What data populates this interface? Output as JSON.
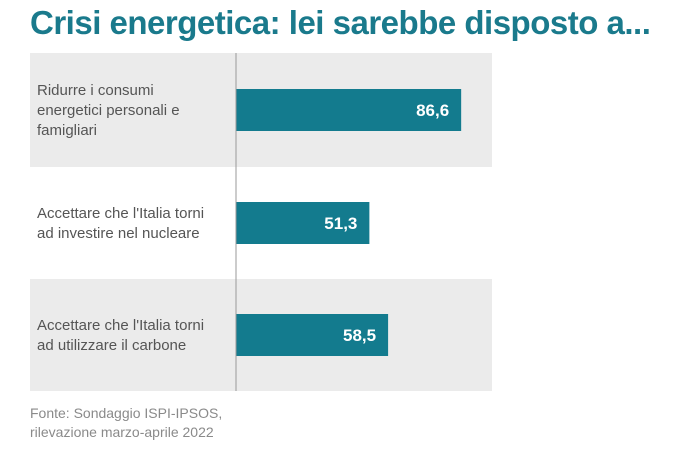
{
  "title": "Crisi energetica: lei sarebbe disposto a...",
  "source": {
    "line1": "Fonte: Sondaggio ISPI-IPSOS,",
    "line2": "rilevazione marzo-aprile 2022"
  },
  "colors": {
    "title": "#1a7a8c",
    "bar": "#137b8e",
    "band": "#ebebeb",
    "label": "#555555",
    "source": "#8a8a8a"
  },
  "chart_data": {
    "type": "bar",
    "orientation": "horizontal",
    "categories": [
      [
        "Ridurre i consumi",
        "energetici personali e",
        "famigliari"
      ],
      [
        "Accettare che l'Italia torni",
        "ad investire nel nucleare"
      ],
      [
        "Accettare che l'Italia torni",
        "ad utilizzare il carbone"
      ]
    ],
    "values": [
      86.6,
      51.3,
      58.5
    ],
    "value_labels": [
      "86,6",
      "51,3",
      "58,5"
    ],
    "xlim": [
      0,
      100
    ],
    "grid": false,
    "legend": "none"
  }
}
